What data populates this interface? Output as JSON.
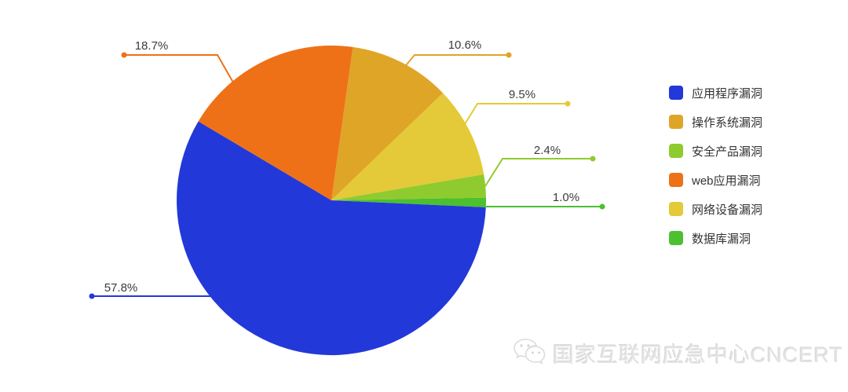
{
  "chart_data": {
    "type": "pie",
    "title": "",
    "legend_position": "right",
    "start_angle_deg": 8,
    "slices": [
      {
        "label": "操作系统漏洞",
        "value": 10.6,
        "pct_label": "10.6%",
        "color": "#dfa526"
      },
      {
        "label": "网络设备漏洞",
        "value": 9.5,
        "pct_label": "9.5%",
        "color": "#e4ca38"
      },
      {
        "label": "安全产品漏洞",
        "value": 2.4,
        "pct_label": "2.4%",
        "color": "#8fcb2e"
      },
      {
        "label": "数据库漏洞",
        "value": 1.0,
        "pct_label": "1.0%",
        "color": "#4cc02e"
      },
      {
        "label": "应用程序漏洞",
        "value": 57.8,
        "pct_label": "57.8%",
        "color": "#2338d9"
      },
      {
        "label": "web应用漏洞",
        "value": 18.7,
        "pct_label": "18.7%",
        "color": "#ee7118"
      }
    ],
    "legend": [
      {
        "label": "应用程序漏洞",
        "color": "#2338d9"
      },
      {
        "label": "操作系统漏洞",
        "color": "#dfa526"
      },
      {
        "label": "安全产品漏洞",
        "color": "#8fcb2e"
      },
      {
        "label": "web应用漏洞",
        "color": "#ee7118"
      },
      {
        "label": "网络设备漏洞",
        "color": "#e4ca38"
      },
      {
        "label": "数据库漏洞",
        "color": "#4cc02e"
      }
    ]
  },
  "watermark": {
    "text": "国家互联网应急中心CNCERT",
    "logo": "wechat-icon"
  }
}
